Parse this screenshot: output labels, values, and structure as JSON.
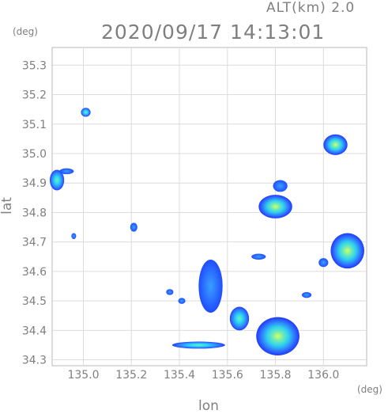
{
  "header": {
    "altitude_label": "ALT(km) 2.0",
    "timestamp": "2020/09/17 14:13:01"
  },
  "axes": {
    "y_unit": "(deg)",
    "x_unit": "(deg)",
    "y_title": "lat",
    "x_title": "lon"
  },
  "chart_data": {
    "type": "heatmap",
    "xlabel": "lon",
    "ylabel": "lat",
    "xlim": [
      134.87,
      136.18
    ],
    "ylim": [
      34.28,
      35.36
    ],
    "x_ticks": [
      {
        "value": 135.0,
        "label": "135.0"
      },
      {
        "value": 135.2,
        "label": "135.2"
      },
      {
        "value": 135.4,
        "label": "135.4"
      },
      {
        "value": 135.6,
        "label": "135.6"
      },
      {
        "value": 135.8,
        "label": "135.8"
      },
      {
        "value": 136.0,
        "label": "136.0"
      }
    ],
    "y_ticks": [
      {
        "value": 34.3,
        "label": "34.3"
      },
      {
        "value": 34.4,
        "label": "34.4"
      },
      {
        "value": 34.5,
        "label": "34.5"
      },
      {
        "value": 34.6,
        "label": "34.6"
      },
      {
        "value": 34.7,
        "label": "34.7"
      },
      {
        "value": 34.8,
        "label": "34.8"
      },
      {
        "value": 34.9,
        "label": "34.9"
      },
      {
        "value": 35.0,
        "label": "35.0"
      },
      {
        "value": 35.1,
        "label": "35.1"
      },
      {
        "value": 35.2,
        "label": "35.2"
      },
      {
        "value": 35.3,
        "label": "35.3"
      }
    ],
    "grid": true,
    "echo_cells": [
      {
        "lon": 135.01,
        "lat": 35.14,
        "rlon": 0.02,
        "rlat": 0.015,
        "level": 1
      },
      {
        "lon": 134.89,
        "lat": 34.91,
        "rlon": 0.03,
        "rlat": 0.035,
        "level": 1
      },
      {
        "lon": 134.93,
        "lat": 34.94,
        "rlon": 0.03,
        "rlat": 0.01,
        "level": 0
      },
      {
        "lon": 134.96,
        "lat": 34.72,
        "rlon": 0.01,
        "rlat": 0.01,
        "level": 0
      },
      {
        "lon": 136.05,
        "lat": 35.03,
        "rlon": 0.05,
        "rlat": 0.035,
        "level": 2
      },
      {
        "lon": 135.8,
        "lat": 34.82,
        "rlon": 0.07,
        "rlat": 0.04,
        "level": 2
      },
      {
        "lon": 135.82,
        "lat": 34.89,
        "rlon": 0.03,
        "rlat": 0.02,
        "level": 0
      },
      {
        "lon": 136.1,
        "lat": 34.67,
        "rlon": 0.07,
        "rlat": 0.06,
        "level": 2
      },
      {
        "lon": 136.0,
        "lat": 34.63,
        "rlon": 0.02,
        "rlat": 0.015,
        "level": 0
      },
      {
        "lon": 135.53,
        "lat": 34.55,
        "rlon": 0.05,
        "rlat": 0.09,
        "level": 0
      },
      {
        "lon": 135.65,
        "lat": 34.44,
        "rlon": 0.04,
        "rlat": 0.04,
        "level": 1
      },
      {
        "lon": 135.81,
        "lat": 34.38,
        "rlon": 0.09,
        "rlat": 0.065,
        "level": 2
      },
      {
        "lon": 135.48,
        "lat": 34.35,
        "rlon": 0.11,
        "rlat": 0.012,
        "level": 1
      },
      {
        "lon": 135.41,
        "lat": 34.5,
        "rlon": 0.015,
        "rlat": 0.01,
        "level": 0
      },
      {
        "lon": 135.36,
        "lat": 34.53,
        "rlon": 0.015,
        "rlat": 0.01,
        "level": 0
      },
      {
        "lon": 135.73,
        "lat": 34.65,
        "rlon": 0.03,
        "rlat": 0.01,
        "level": 0
      },
      {
        "lon": 135.93,
        "lat": 34.52,
        "rlon": 0.02,
        "rlat": 0.01,
        "level": 0
      },
      {
        "lon": 135.21,
        "lat": 34.75,
        "rlon": 0.015,
        "rlat": 0.015,
        "level": 0
      }
    ]
  }
}
